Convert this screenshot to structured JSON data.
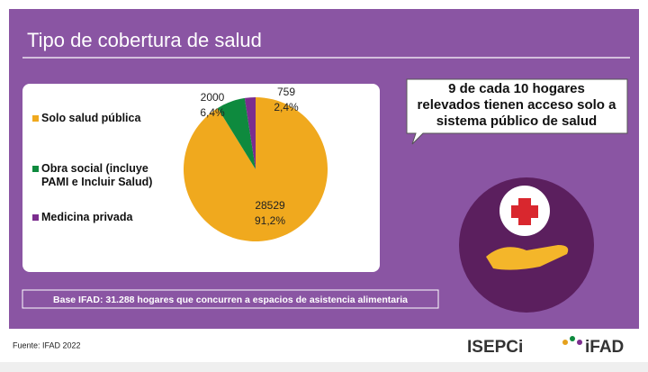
{
  "chart_data": {
    "type": "pie",
    "title": "Tipo de cobertura de salud",
    "categories": [
      "Solo salud pública",
      "Obra social (incluye PAMI e Incluir Salud)",
      "Medicina privada"
    ],
    "values": [
      28529,
      2000,
      759
    ],
    "percent_labels": [
      {
        "value": 91.2,
        "label": "91,2%"
      },
      {
        "value": 6.4,
        "label": "6,4%"
      },
      {
        "value": 2.4,
        "label": "2,4%"
      }
    ],
    "colors": [
      "#f0a91e",
      "#0e8a3e",
      "#7b2d8e"
    ]
  },
  "callout": {
    "lines": [
      "9 de cada 10 hogares",
      "relevados tienen acceso solo a",
      "sistema público de salud"
    ]
  },
  "base_note": "Base IFAD: 31.288 hogares que concurren a espacios de asistencia alimentaria",
  "source": "Fuente: IFAD 2022",
  "logos": [
    "ISEPCi",
    "iFAD"
  ]
}
